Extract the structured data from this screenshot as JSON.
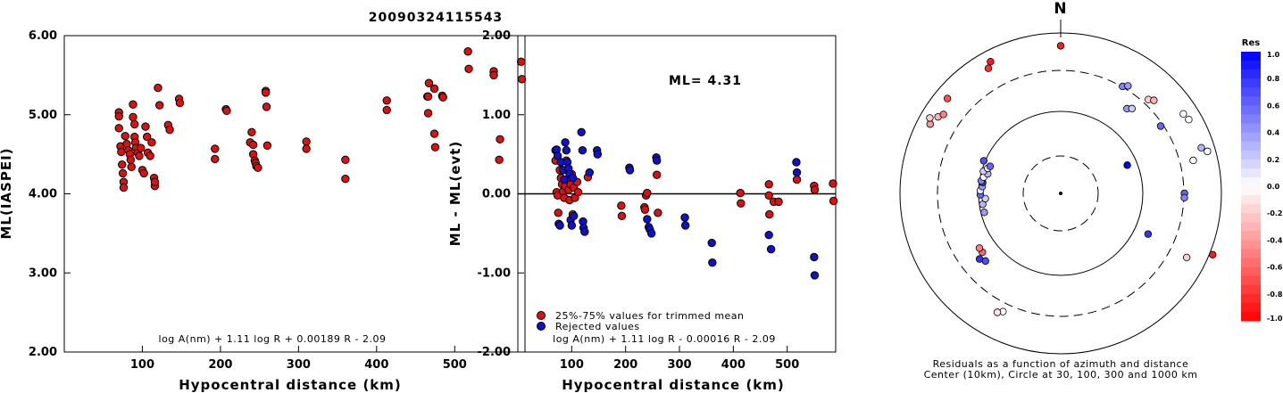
{
  "title": "20090324115543",
  "chart_data": [
    {
      "type": "scatter",
      "xlabel": "Hypocentral distance (km)",
      "ylabel": "ML(IASPEI)",
      "xlim": [
        0,
        590
      ],
      "ylim": [
        2.0,
        6.0
      ],
      "xticks": [
        100,
        200,
        300,
        400,
        500
      ],
      "yticks": [
        "2.00",
        "3.00",
        "4.00",
        "5.00",
        "6.00"
      ],
      "xtick_labels": [
        "100",
        "200",
        "300",
        "400",
        "500"
      ],
      "formula": "log A(nm) + 1.11 log R + 0.00189 R - 2.09",
      "series": [
        {
          "color": "#dd1111",
          "points": [
            [
              70,
              5.03
            ],
            [
              70,
              4.98
            ],
            [
              70,
              4.83
            ],
            [
              72,
              4.6
            ],
            [
              73,
              4.53
            ],
            [
              74,
              4.37
            ],
            [
              75,
              4.26
            ],
            [
              76,
              4.15
            ],
            [
              76,
              4.08
            ],
            [
              78,
              4.73
            ],
            [
              80,
              4.63
            ],
            [
              82,
              4.55
            ],
            [
              84,
              4.5
            ],
            [
              85,
              4.43
            ],
            [
              86,
              4.34
            ],
            [
              88,
              5.13
            ],
            [
              88,
              4.97
            ],
            [
              90,
              4.88
            ],
            [
              90,
              4.72
            ],
            [
              91,
              4.65
            ],
            [
              92,
              4.58
            ],
            [
              94,
              4.52
            ],
            [
              96,
              4.48
            ],
            [
              98,
              4.58
            ],
            [
              100,
              4.3
            ],
            [
              102,
              4.26
            ],
            [
              104,
              4.85
            ],
            [
              106,
              4.72
            ],
            [
              107,
              4.52
            ],
            [
              110,
              4.48
            ],
            [
              112,
              4.65
            ],
            [
              115,
              4.2
            ],
            [
              116,
              4.1
            ],
            [
              116,
              4.15
            ],
            [
              120,
              5.34
            ],
            [
              122,
              5.12
            ],
            [
              133,
              4.87
            ],
            [
              135,
              4.81
            ],
            [
              147,
              5.2
            ],
            [
              148,
              5.15
            ],
            [
              193,
              4.57
            ],
            [
              193,
              4.44
            ],
            [
              207,
              5.07
            ],
            [
              208,
              5.05
            ],
            [
              238,
              4.65
            ],
            [
              240,
              4.78
            ],
            [
              242,
              4.62
            ],
            [
              242,
              4.5
            ],
            [
              244,
              4.42
            ],
            [
              245,
              4.39
            ],
            [
              246,
              4.35
            ],
            [
              248,
              4.33
            ],
            [
              258,
              5.3
            ],
            [
              258,
              5.28
            ],
            [
              259,
              5.1
            ],
            [
              260,
              4.61
            ],
            [
              310,
              4.66
            ],
            [
              310,
              4.57
            ],
            [
              360,
              4.43
            ],
            [
              360,
              4.19
            ],
            [
              413,
              5.18
            ],
            [
              413,
              5.06
            ],
            [
              465,
              5.23
            ],
            [
              466,
              5.02
            ],
            [
              466,
              5.23
            ],
            [
              467,
              5.4
            ],
            [
              474,
              5.33
            ],
            [
              474,
              4.76
            ],
            [
              475,
              4.59
            ],
            [
              484,
              5.24
            ],
            [
              485,
              5.22
            ],
            [
              517,
              5.8
            ],
            [
              518,
              5.58
            ],
            [
              550,
              5.55
            ],
            [
              550,
              5.5
            ],
            [
              558,
              4.69
            ],
            [
              557,
              4.43
            ],
            [
              585,
              5.67
            ],
            [
              586,
              5.45
            ]
          ]
        }
      ]
    },
    {
      "type": "scatter",
      "xlabel": "Hypocentral distance (km)",
      "ylabel": "ML - ML(evt)",
      "xlim": [
        0,
        590
      ],
      "ylim": [
        -2.0,
        2.0
      ],
      "xticks": [
        100,
        200,
        300,
        400,
        500
      ],
      "yticks": [
        "-2.00",
        "-1.00",
        "0.00",
        "1.00",
        "2.00"
      ],
      "xtick_labels": [
        "100",
        "200",
        "300",
        "400",
        "500"
      ],
      "annotation": "ML= 4.31",
      "formula": "log A(nm) + 1.11 log R - 0.00016 R - 2.09",
      "series": [
        {
          "name": "25%-75% values for trimmed mean",
          "color": "#dd1111",
          "points": [
            [
              70,
              0.42
            ],
            [
              72,
              0.02
            ],
            [
              74,
              -0.02
            ],
            [
              75,
              -0.24
            ],
            [
              78,
              0.3
            ],
            [
              80,
              0.2
            ],
            [
              82,
              0.12
            ],
            [
              84,
              0.03
            ],
            [
              86,
              -0.05
            ],
            [
              88,
              0.1
            ],
            [
              90,
              0.42
            ],
            [
              92,
              0.18
            ],
            [
              94,
              0.05
            ],
            [
              96,
              -0.08
            ],
            [
              98,
              0.12
            ],
            [
              100,
              0.25
            ],
            [
              102,
              -0.26
            ],
            [
              104,
              0.08
            ],
            [
              106,
              -0.05
            ],
            [
              110,
              0.15
            ],
            [
              112,
              0.02
            ],
            [
              130,
              0.21
            ],
            [
              192,
              -0.15
            ],
            [
              193,
              -0.28
            ],
            [
              235,
              -0.17
            ],
            [
              236,
              -0.2
            ],
            [
              238,
              -0.02
            ],
            [
              240,
              0.01
            ],
            [
              258,
              0.24
            ],
            [
              260,
              -0.24
            ],
            [
              413,
              0.01
            ],
            [
              414,
              -0.12
            ],
            [
              466,
              0.12
            ],
            [
              466,
              -0.02
            ],
            [
              467,
              -0.26
            ],
            [
              475,
              -0.1
            ],
            [
              484,
              -0.1
            ],
            [
              518,
              0.18
            ],
            [
              550,
              0.1
            ],
            [
              551,
              0.05
            ],
            [
              585,
              0.13
            ],
            [
              586,
              -0.09
            ]
          ]
        },
        {
          "name": "Rejected values",
          "color": "#1111cc",
          "points": [
            [
              70,
              0.55
            ],
            [
              72,
              0.56
            ],
            [
              74,
              0.48
            ],
            [
              76,
              -0.38
            ],
            [
              78,
              -0.4
            ],
            [
              80,
              0.4
            ],
            [
              84,
              0.3
            ],
            [
              86,
              0.18
            ],
            [
              88,
              0.65
            ],
            [
              90,
              0.55
            ],
            [
              92,
              0.4
            ],
            [
              94,
              0.32
            ],
            [
              96,
              0.25
            ],
            [
              98,
              -0.33
            ],
            [
              100,
              -0.4
            ],
            [
              102,
              0.2
            ],
            [
              104,
              -0.28
            ],
            [
              118,
              0.78
            ],
            [
              120,
              0.55
            ],
            [
              121,
              -0.35
            ],
            [
              122,
              -0.43
            ],
            [
              124,
              -0.48
            ],
            [
              133,
              0.27
            ],
            [
              147,
              0.55
            ],
            [
              148,
              0.5
            ],
            [
              207,
              0.33
            ],
            [
              208,
              0.3
            ],
            [
              240,
              -0.32
            ],
            [
              243,
              -0.42
            ],
            [
              245,
              -0.45
            ],
            [
              248,
              -0.5
            ],
            [
              257,
              0.46
            ],
            [
              258,
              0.42
            ],
            [
              310,
              -0.3
            ],
            [
              311,
              -0.4
            ],
            [
              360,
              -0.62
            ],
            [
              361,
              -0.87
            ],
            [
              466,
              -0.52
            ],
            [
              470,
              -0.7
            ],
            [
              517,
              0.4
            ],
            [
              518,
              0.27
            ],
            [
              550,
              -0.8
            ],
            [
              551,
              -1.03
            ]
          ]
        }
      ]
    },
    {
      "type": "polar-scatter",
      "north_label": "N",
      "caption_line1": "Residuals as a function of azimuth and distance",
      "caption_line2": "Center (10km), Circle at 30, 100, 300 and 1000 km",
      "colorbar_title": "Res",
      "colorbar_ticks": [
        "1.0",
        "0.8",
        "0.6",
        "0.4",
        "0.2",
        "0.0",
        "-0.2",
        "-0.4",
        "-0.6",
        "-0.8",
        "-1.0"
      ],
      "points": [
        {
          "az": 0,
          "r": 0.92,
          "res": -0.9
        },
        {
          "az": 30,
          "r": 0.77,
          "res": 0.5
        },
        {
          "az": 32,
          "r": 0.79,
          "res": 0.4
        },
        {
          "az": 38,
          "r": 0.67,
          "res": 0.4
        },
        {
          "az": 40,
          "r": 0.69,
          "res": 0.2
        },
        {
          "az": 43,
          "r": 0.8,
          "res": -0.2
        },
        {
          "az": 45,
          "r": 0.82,
          "res": -0.3
        },
        {
          "az": 56,
          "r": 0.75,
          "res": 0.6
        },
        {
          "az": 57,
          "r": 0.91,
          "res": 0.0
        },
        {
          "az": 60,
          "r": 0.92,
          "res": 0.0
        },
        {
          "az": 72,
          "r": 0.92,
          "res": 0.3
        },
        {
          "az": 74,
          "r": 0.95,
          "res": 0.0
        },
        {
          "az": 76,
          "r": 0.85,
          "res": 0.0
        },
        {
          "az": 67,
          "r": 0.45,
          "res": 1.0
        },
        {
          "az": 90,
          "r": 0.77,
          "res": 0.6
        },
        {
          "az": 92,
          "r": 0.77,
          "res": 0.5
        },
        {
          "az": 115,
          "r": 0.6,
          "res": 0.8
        },
        {
          "az": 117,
          "r": 0.88,
          "res": -0.2
        },
        {
          "az": 112,
          "r": 1.02,
          "res": -0.9
        },
        {
          "az": 206,
          "r": 0.82,
          "res": 0.0
        },
        {
          "az": 208,
          "r": 0.84,
          "res": -0.1
        },
        {
          "az": 228,
          "r": 0.63,
          "res": 0.7
        },
        {
          "az": 231,
          "r": 0.65,
          "res": 0.8
        },
        {
          "az": 233,
          "r": 0.61,
          "res": -0.6
        },
        {
          "az": 236,
          "r": 0.61,
          "res": -0.5
        },
        {
          "az": 256,
          "r": 0.49,
          "res": 0.4
        },
        {
          "az": 262,
          "r": 0.49,
          "res": 0.3
        },
        {
          "az": 266,
          "r": 0.47,
          "res": 0.2
        },
        {
          "az": 269,
          "r": 0.5,
          "res": 0.6
        },
        {
          "az": 272,
          "r": 0.5,
          "res": 0.1
        },
        {
          "az": 275,
          "r": 0.49,
          "res": 0.4
        },
        {
          "az": 278,
          "r": 0.49,
          "res": 0.8
        },
        {
          "az": 279,
          "r": 0.5,
          "res": 0.5
        },
        {
          "az": 282,
          "r": 0.49,
          "res": 0.0
        },
        {
          "az": 285,
          "r": 0.47,
          "res": 0.3
        },
        {
          "az": 286,
          "r": 0.5,
          "res": 0.2
        },
        {
          "az": 289,
          "r": 0.48,
          "res": 0.0
        },
        {
          "az": 291,
          "r": 0.47,
          "res": 0.6
        },
        {
          "az": 293,
          "r": 0.52,
          "res": 0.7
        },
        {
          "az": 298,
          "r": 0.92,
          "res": -0.4
        },
        {
          "az": 300,
          "r": 0.94,
          "res": -0.2
        },
        {
          "az": 302,
          "r": 0.9,
          "res": -0.3
        },
        {
          "az": 304,
          "r": 0.88,
          "res": -0.5
        },
        {
          "az": 310,
          "r": 0.92,
          "res": -0.7
        },
        {
          "az": 330,
          "r": 0.9,
          "res": -0.8
        },
        {
          "az": 332,
          "r": 0.93,
          "res": -0.9
        }
      ]
    }
  ]
}
